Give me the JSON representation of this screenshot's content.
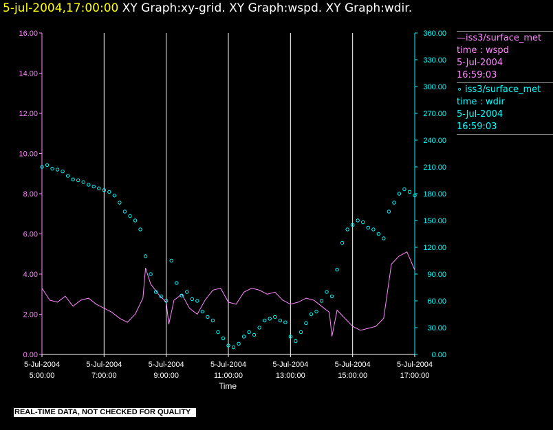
{
  "window_title": {
    "timestamp": "5-jul-2004,17:00:00",
    "graphs": "XY Graph:xy-grid.  XY Graph:wspd.  XY Graph:wdir."
  },
  "legend": [
    {
      "marker": "—",
      "name": "iss3/surface_met",
      "field": "time : wspd",
      "date": "5-Jul-2004",
      "time": "16:59:03",
      "color": "#ff88ff"
    },
    {
      "marker": "∘",
      "name": "iss3/surface_met",
      "field": "time : wdir",
      "date": "5-Jul-2004",
      "time": "16:59:03",
      "color": "#00ffff"
    }
  ],
  "banner": "REAL-TIME DATA, NOT CHECKED FOR QUALITY",
  "colors": {
    "background": "#000000",
    "wspd": "#ff88ff",
    "wdir": "#00ffff",
    "grid": "#ffffff",
    "axis_text": "#ffffff"
  },
  "chart_data": {
    "type": "line",
    "xlabel": "Time",
    "x_range": [
      "2004-07-05 05:00",
      "2004-07-05 17:00"
    ],
    "x_ticks": [
      {
        "date": "5-Jul-2004",
        "time": "5:00:00",
        "t": "05:00"
      },
      {
        "date": "5-Jul-2004",
        "time": "7:00:00",
        "t": "07:00"
      },
      {
        "date": "5-Jul-2004",
        "time": "9:00:00",
        "t": "09:00"
      },
      {
        "date": "5-Jul-2004",
        "time": "11:00:00",
        "t": "11:00"
      },
      {
        "date": "5-Jul-2004",
        "time": "13:00:00",
        "t": "13:00"
      },
      {
        "date": "5-Jul-2004",
        "time": "15:00:00",
        "t": "15:00"
      },
      {
        "date": "5-Jul-2004",
        "time": "17:00:00",
        "t": "17:00"
      }
    ],
    "grid": "vertical lines at every x tick",
    "y_left": {
      "ylim": [
        0,
        16
      ],
      "ticks": [
        "0.00",
        "2.00",
        "4.00",
        "6.00",
        "8.00",
        "10.00",
        "12.00",
        "14.00",
        "16.00"
      ],
      "color": "#ff88ff"
    },
    "y_right": {
      "ylim": [
        0,
        360
      ],
      "ticks": [
        "0.00",
        "30.00",
        "60.00",
        "90.00",
        "120.00",
        "150.00",
        "180.00",
        "210.00",
        "240.00",
        "270.00",
        "300.00",
        "330.00",
        "360.00"
      ],
      "color": "#00ffff"
    },
    "series": [
      {
        "name": "iss3/surface_met time : wspd",
        "axis": "left",
        "style": "line",
        "color": "#ff88ff",
        "x": [
          "05:00",
          "05:15",
          "05:30",
          "05:45",
          "06:00",
          "06:15",
          "06:30",
          "06:45",
          "07:00",
          "07:15",
          "07:30",
          "07:45",
          "08:00",
          "08:15",
          "08:20",
          "08:30",
          "08:45",
          "09:00",
          "09:05",
          "09:15",
          "09:30",
          "09:45",
          "10:00",
          "10:15",
          "10:30",
          "10:45",
          "11:00",
          "11:15",
          "11:30",
          "11:45",
          "12:00",
          "12:15",
          "12:30",
          "12:45",
          "13:00",
          "13:15",
          "13:30",
          "13:45",
          "14:00",
          "14:15",
          "14:20",
          "14:30",
          "14:45",
          "15:00",
          "15:15",
          "15:30",
          "15:45",
          "16:00",
          "16:15",
          "16:30",
          "16:45",
          "17:00"
        ],
        "y": [
          3.3,
          2.7,
          2.6,
          2.9,
          2.4,
          2.7,
          2.8,
          2.5,
          2.3,
          2.1,
          1.8,
          1.6,
          2.0,
          2.8,
          4.3,
          3.5,
          3.0,
          2.6,
          1.5,
          2.7,
          3.0,
          2.3,
          2.0,
          2.7,
          3.2,
          3.3,
          2.6,
          2.5,
          3.1,
          3.3,
          3.2,
          3.0,
          3.1,
          2.7,
          2.5,
          2.6,
          2.8,
          2.7,
          2.4,
          2.1,
          0.9,
          2.2,
          1.8,
          1.4,
          1.2,
          1.3,
          1.4,
          1.8,
          4.5,
          4.9,
          5.1,
          4.2
        ]
      },
      {
        "name": "iss3/surface_met time : wdir",
        "axis": "right",
        "style": "scatter",
        "color": "#00ffff",
        "x": [
          "05:00",
          "05:10",
          "05:20",
          "05:30",
          "05:40",
          "05:50",
          "06:00",
          "06:10",
          "06:20",
          "06:30",
          "06:40",
          "06:50",
          "07:00",
          "07:10",
          "07:20",
          "07:30",
          "07:40",
          "07:50",
          "08:00",
          "08:10",
          "08:20",
          "08:30",
          "08:40",
          "08:50",
          "09:00",
          "09:10",
          "09:20",
          "09:30",
          "09:40",
          "09:50",
          "10:00",
          "10:10",
          "10:20",
          "10:30",
          "10:40",
          "10:50",
          "11:00",
          "11:10",
          "11:20",
          "11:30",
          "11:40",
          "11:50",
          "12:00",
          "12:10",
          "12:20",
          "12:30",
          "12:40",
          "12:50",
          "13:00",
          "13:10",
          "13:20",
          "13:30",
          "13:40",
          "13:50",
          "14:00",
          "14:10",
          "14:20",
          "14:30",
          "14:40",
          "14:50",
          "15:00",
          "15:10",
          "15:20",
          "15:30",
          "15:40",
          "15:50",
          "16:00",
          "16:10",
          "16:20",
          "16:30",
          "16:40",
          "16:50",
          "17:00"
        ],
        "y": [
          210,
          212,
          208,
          207,
          205,
          200,
          196,
          195,
          193,
          190,
          188,
          186,
          184,
          182,
          178,
          170,
          160,
          155,
          150,
          140,
          110,
          90,
          70,
          65,
          60,
          105,
          80,
          66,
          70,
          62,
          60,
          48,
          42,
          38,
          25,
          18,
          10,
          8,
          12,
          20,
          25,
          22,
          30,
          38,
          40,
          42,
          38,
          36,
          20,
          15,
          25,
          35,
          45,
          48,
          60,
          70,
          65,
          95,
          125,
          140,
          145,
          150,
          148,
          142,
          140,
          135,
          130,
          160,
          170,
          180,
          185,
          182,
          178
        ]
      }
    ]
  }
}
